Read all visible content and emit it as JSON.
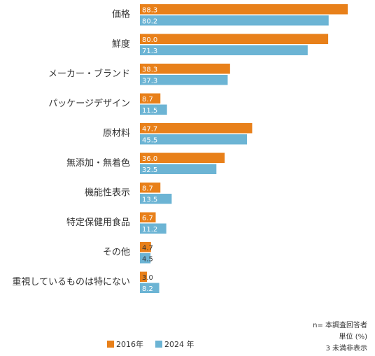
{
  "chart_data": {
    "type": "bar",
    "orientation": "horizontal",
    "categories": [
      "価格",
      "鮮度",
      "メーカー・ブランド",
      "パッケージデザイン",
      "原材料",
      "無添加・無着色",
      "機能性表示",
      "特定保健用食品",
      "その他",
      "重視しているものは特にない"
    ],
    "series": [
      {
        "name": "2016年",
        "color": "#e8801a",
        "values": [
          88.3,
          80,
          38.3,
          8.7,
          47.7,
          36,
          8.7,
          6.7,
          4.7,
          3
        ],
        "value_labels": [
          "88.3",
          "80.0",
          "38.3",
          "8.7",
          "47.7",
          "36.0",
          "8.7",
          "6.7",
          "4.7",
          "3.0"
        ]
      },
      {
        "name": "2024 年",
        "color": "#6cb4d4",
        "values": [
          80.2,
          71.3,
          37.3,
          11.5,
          45.5,
          32.5,
          13.5,
          11.2,
          4.5,
          8.2
        ],
        "value_labels": [
          "80.2",
          "71.3",
          "37.3",
          "11.5",
          "45.5",
          "32.5",
          "13.5",
          "11.2",
          "4.5",
          "8.2"
        ]
      }
    ],
    "notes": [
      "n= 本調査回答者",
      "単位 (%)",
      "3 未満非表示"
    ],
    "legend": "bottom"
  }
}
